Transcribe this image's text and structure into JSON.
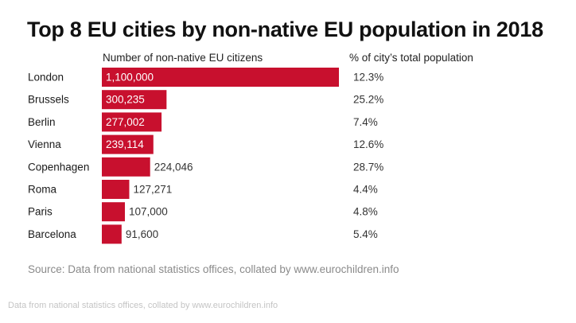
{
  "chart_data": {
    "type": "bar",
    "orientation": "horizontal",
    "title": "Top 8 EU cities by non-native EU population in 2018",
    "column_headers": {
      "values": "Number of non-native EU citizens",
      "share": "% of city’s total population"
    },
    "categories": [
      "London",
      "Brussels",
      "Berlin",
      "Vienna",
      "Copenhagen",
      "Roma",
      "Paris",
      "Barcelona"
    ],
    "values": [
      1100000,
      300235,
      277002,
      239114,
      224046,
      127271,
      107000,
      91600
    ],
    "value_labels": [
      "1,100,000",
      "300,235",
      "277,002",
      "239,114",
      "224,046",
      "127,271",
      "107,000",
      "91,600"
    ],
    "share_labels": [
      "12.3%",
      "25.2%",
      "7.4%",
      "12.6%",
      "28.7%",
      "4.4%",
      "4.8%",
      "5.4%"
    ],
    "xlim": [
      0,
      1100000
    ],
    "grid": false,
    "legend": "none",
    "bar_color": "#c8102e",
    "label_inside_color": "#ffffff",
    "label_outside_color": "#333333"
  },
  "source": "Source: Data from national statistics offices, collated by www.eurochildren.info",
  "footer": "Data from national statistics offices, collated by www.eurochildren.info"
}
